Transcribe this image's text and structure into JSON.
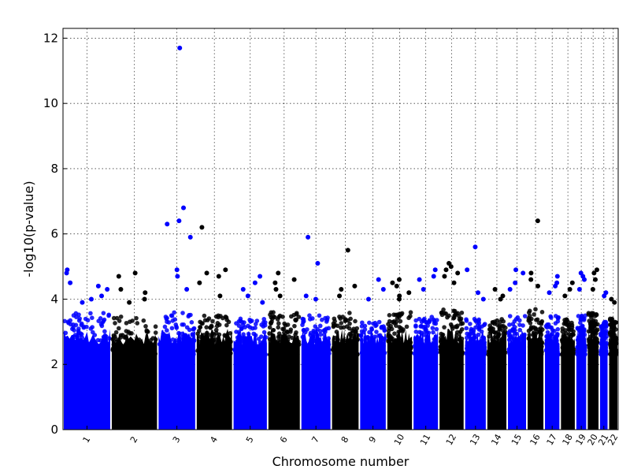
{
  "chart_data": {
    "type": "scatter",
    "title": "",
    "xlabel": "Chromosome number",
    "ylabel": "-log10(p-value)",
    "ylim": [
      0,
      12.3
    ],
    "y_ticks": [
      0,
      2,
      4,
      6,
      8,
      10,
      12
    ],
    "grid": true,
    "legend": "none",
    "colors": [
      "#0000ff",
      "#000000"
    ],
    "chromosomes": [
      {
        "label": "1",
        "color": "#0000ff",
        "baseline_max": 3.6,
        "peaks": [
          4.9,
          4.8,
          4.5,
          4.4,
          4.3,
          4.1,
          4.0,
          3.9
        ]
      },
      {
        "label": "2",
        "color": "#000000",
        "baseline_max": 3.5,
        "peaks": [
          4.8,
          4.7,
          4.3,
          4.2,
          4.0,
          3.9
        ]
      },
      {
        "label": "3",
        "color": "#0000ff",
        "baseline_max": 3.6,
        "peaks": [
          11.7,
          6.8,
          6.4,
          6.3,
          5.9,
          4.9,
          4.7,
          4.3
        ]
      },
      {
        "label": "4",
        "color": "#000000",
        "baseline_max": 3.5,
        "peaks": [
          6.2,
          4.9,
          4.8,
          4.7,
          4.5,
          4.1
        ]
      },
      {
        "label": "5",
        "color": "#0000ff",
        "baseline_max": 3.4,
        "peaks": [
          4.7,
          4.5,
          4.3,
          4.1,
          3.9
        ]
      },
      {
        "label": "6",
        "color": "#000000",
        "baseline_max": 3.6,
        "peaks": [
          4.8,
          4.6,
          4.5,
          4.3,
          4.1
        ]
      },
      {
        "label": "7",
        "color": "#0000ff",
        "baseline_max": 3.5,
        "peaks": [
          5.9,
          5.1,
          4.1,
          4.0
        ]
      },
      {
        "label": "8",
        "color": "#000000",
        "baseline_max": 3.6,
        "peaks": [
          5.5,
          4.4,
          4.3,
          4.1
        ]
      },
      {
        "label": "9",
        "color": "#0000ff",
        "baseline_max": 3.3,
        "peaks": [
          4.6,
          4.3,
          4.0
        ]
      },
      {
        "label": "10",
        "color": "#000000",
        "baseline_max": 3.6,
        "peaks": [
          4.6,
          4.5,
          4.4,
          4.2,
          4.1,
          4.0
        ]
      },
      {
        "label": "11",
        "color": "#0000ff",
        "baseline_max": 3.5,
        "peaks": [
          4.9,
          4.7,
          4.6,
          4.3
        ]
      },
      {
        "label": "12",
        "color": "#000000",
        "baseline_max": 3.7,
        "peaks": [
          5.1,
          5.0,
          4.9,
          4.8,
          4.7,
          4.5
        ]
      },
      {
        "label": "13",
        "color": "#0000ff",
        "baseline_max": 3.5,
        "peaks": [
          5.6,
          4.9,
          4.2,
          4.0
        ]
      },
      {
        "label": "14",
        "color": "#000000",
        "baseline_max": 3.4,
        "peaks": [
          4.3,
          4.1,
          4.0
        ]
      },
      {
        "label": "15",
        "color": "#0000ff",
        "baseline_max": 3.5,
        "peaks": [
          4.9,
          4.8,
          4.5,
          4.3
        ]
      },
      {
        "label": "16",
        "color": "#000000",
        "baseline_max": 3.7,
        "peaks": [
          6.4,
          4.8,
          4.6,
          4.4
        ]
      },
      {
        "label": "17",
        "color": "#0000ff",
        "baseline_max": 3.5,
        "peaks": [
          4.7,
          4.5,
          4.4,
          4.2
        ]
      },
      {
        "label": "18",
        "color": "#000000",
        "baseline_max": 3.4,
        "peaks": [
          4.5,
          4.3,
          4.1
        ]
      },
      {
        "label": "19",
        "color": "#0000ff",
        "baseline_max": 3.5,
        "peaks": [
          4.8,
          4.7,
          4.6,
          4.3
        ]
      },
      {
        "label": "20",
        "color": "#000000",
        "baseline_max": 3.6,
        "peaks": [
          4.9,
          4.8,
          4.6,
          4.3
        ]
      },
      {
        "label": "21",
        "color": "#0000ff",
        "baseline_max": 3.3,
        "peaks": [
          4.2,
          4.1
        ]
      },
      {
        "label": "22",
        "color": "#000000",
        "baseline_max": 3.4,
        "peaks": [
          4.0,
          3.9
        ]
      }
    ]
  }
}
